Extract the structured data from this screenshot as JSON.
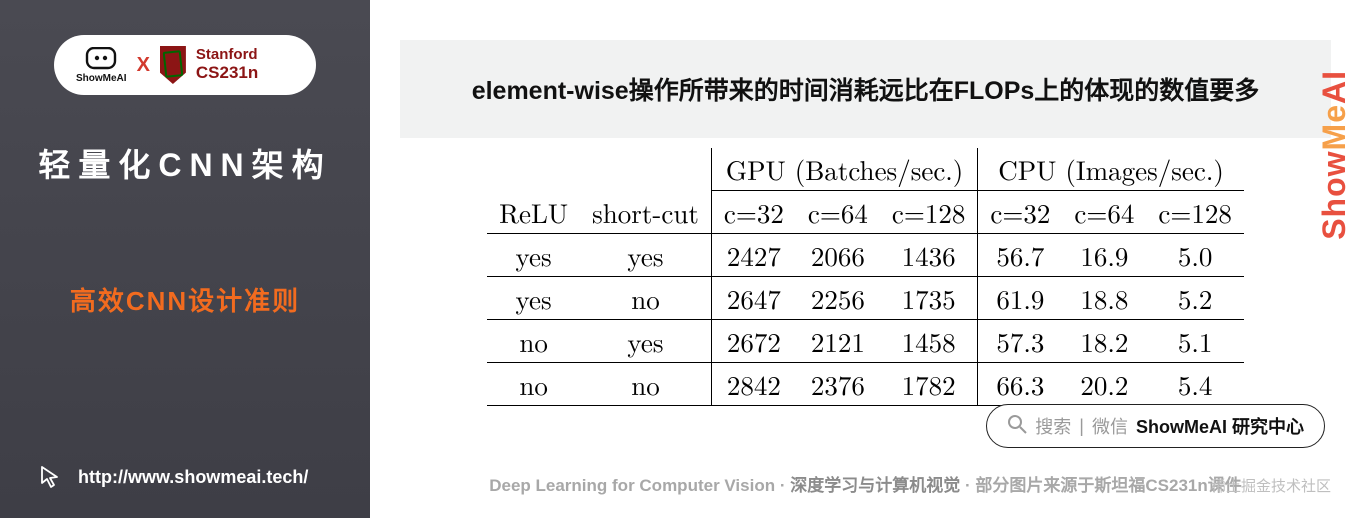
{
  "sidebar": {
    "badge": {
      "logo_label": "ShowMeAI",
      "separator": "X",
      "stanford_line1": "Stanford",
      "stanford_line2": "CS231n"
    },
    "heading_main": "轻量化CNN架构",
    "heading_sub": "高效CNN设计准则",
    "footer_url": "http://www.showmeai.tech/",
    "colors": {
      "bg": "#45454d",
      "accent": "#f26b1f"
    }
  },
  "content": {
    "title_bar": "element-wise操作所带来的时间消耗远比在FLOPs上的体现的数值要多",
    "table": {
      "group_headers": [
        "",
        "",
        "GPU (Batches/sec.)",
        "CPU (Images/sec.)"
      ],
      "sub_headers": [
        "ReLU",
        "short-cut",
        "c=32",
        "c=64",
        "c=128",
        "c=32",
        "c=64",
        "c=128"
      ],
      "rows": [
        [
          "yes",
          "yes",
          "2427",
          "2066",
          "1436",
          "56.7",
          "16.9",
          "5.0"
        ],
        [
          "yes",
          "no",
          "2647",
          "2256",
          "1735",
          "61.9",
          "18.8",
          "5.2"
        ],
        [
          "no",
          "yes",
          "2672",
          "2121",
          "1458",
          "57.3",
          "18.2",
          "5.1"
        ],
        [
          "no",
          "no",
          "2842",
          "2376",
          "1782",
          "66.3",
          "20.2",
          "5.4"
        ]
      ],
      "border_color": "#000000",
      "font_family": "Computer Modern / Times",
      "font_size_pt": 20
    },
    "search_pill": {
      "placeholder_prefix": "搜索",
      "divider": "|",
      "hint": "微信",
      "brand": "ShowMeAI 研究中心"
    },
    "bottom_caption": {
      "left": "Deep Learning for Computer Vision",
      "dot": "·",
      "center": "深度学习与计算机视觉",
      "right": "部分图片来源于斯坦福CS231n课件"
    },
    "side_brand": "ShowMeAI",
    "watermark": "稀土掘金技术社区"
  },
  "palette": {
    "title_bar_bg": "#f1f2f2",
    "brand_red": "#e8503f",
    "brand_orange": "#f6a04a",
    "stanford_red": "#8c1515"
  }
}
